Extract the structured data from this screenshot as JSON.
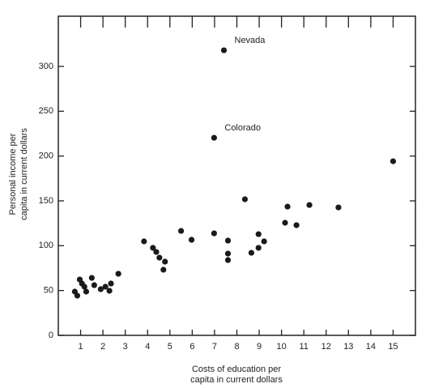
{
  "chart_data": {
    "type": "scatter",
    "x_label": [
      "Costs of education per",
      "capita in current dollars"
    ],
    "y_label": [
      "Personal income per",
      "capita in current dollars"
    ],
    "x": [
      0.74,
      0.85,
      0.96,
      1.06,
      1.17,
      1.25,
      1.5,
      1.61,
      1.9,
      2.11,
      2.29,
      2.36,
      2.69,
      3.84,
      4.24,
      4.39,
      4.53,
      4.71,
      4.78,
      5.5,
      5.97,
      6.98,
      6.98,
      7.42,
      7.6,
      7.6,
      7.6,
      8.36,
      8.65,
      8.97,
      8.97,
      9.22,
      10.16,
      10.27,
      10.67,
      11.25,
      12.55,
      15
    ],
    "values": [
      48.8,
      44.3,
      62.3,
      57.8,
      54.2,
      48.8,
      64.1,
      56,
      51.5,
      54.2,
      49.7,
      57.8,
      68.7,
      104.8,
      97.6,
      93,
      86.7,
      73.2,
      82.2,
      116.5,
      106.6,
      113.8,
      220.4,
      318,
      105.7,
      91.2,
      84,
      151.8,
      92.1,
      112.9,
      97.6,
      104.8,
      125.6,
      143.6,
      122.9,
      145.4,
      142.7,
      194.2
    ],
    "point_labels": [
      null,
      null,
      null,
      null,
      null,
      null,
      null,
      null,
      null,
      null,
      null,
      null,
      null,
      null,
      null,
      null,
      null,
      null,
      null,
      null,
      null,
      null,
      "Colorado",
      "Nevada",
      null,
      null,
      null,
      null,
      null,
      null,
      null,
      null,
      null,
      null,
      null,
      null,
      null,
      null
    ],
    "color": "#1a1a1a",
    "xlim": [
      0,
      16
    ],
    "xticks": [
      1,
      2,
      3,
      4,
      5,
      6,
      7,
      8,
      9,
      10,
      11,
      12,
      13,
      14,
      15
    ],
    "ylim": [
      0,
      356
    ],
    "yticks": [
      0,
      50,
      100,
      150,
      200,
      250,
      300
    ]
  }
}
